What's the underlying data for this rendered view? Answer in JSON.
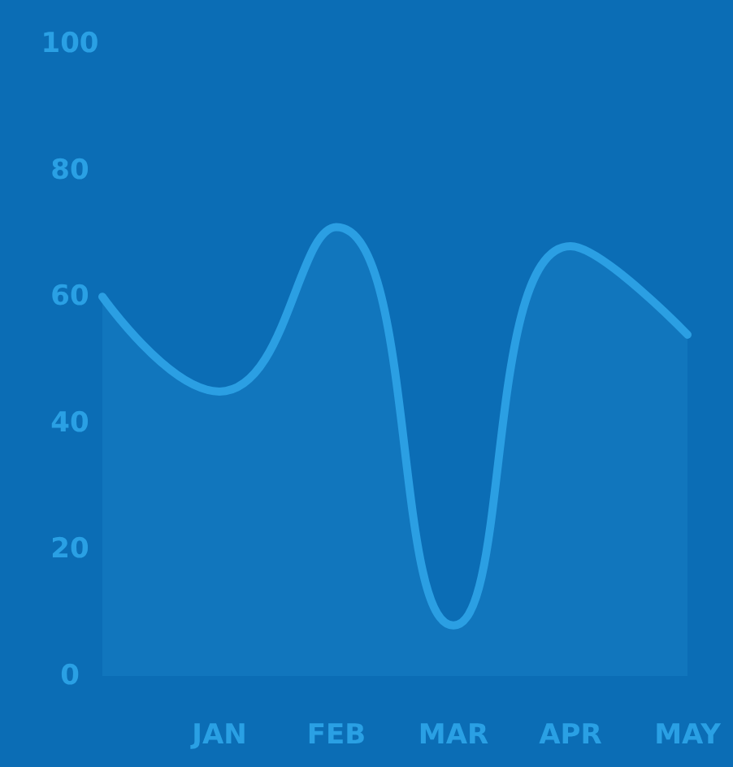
{
  "chart_data": {
    "type": "area",
    "categories": [
      null,
      "JAN",
      "FEB",
      "MAR",
      "APR",
      "MAY"
    ],
    "values": [
      60,
      45,
      71,
      8,
      68,
      54
    ],
    "color": "#2b9fe3",
    "ylim": [
      0,
      100
    ],
    "yticks": [
      0,
      20,
      40,
      60,
      80,
      100
    ],
    "grid": false,
    "marker": "none",
    "line_style": "solid"
  }
}
